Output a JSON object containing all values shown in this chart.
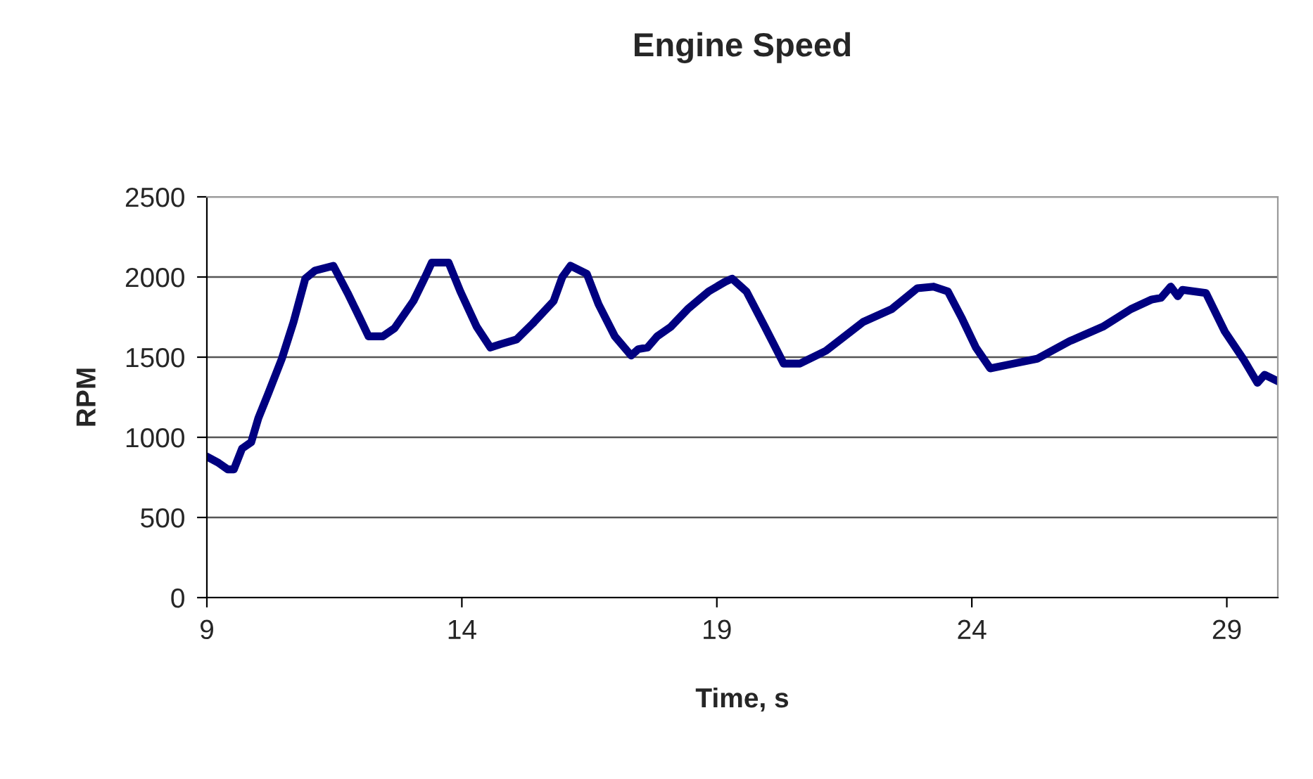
{
  "chart_data": {
    "type": "line",
    "title": "Engine Speed",
    "xlabel": "Time, s",
    "ylabel": "RPM",
    "xlim": [
      9,
      30
    ],
    "xticks": [
      9,
      14,
      19,
      24,
      29
    ],
    "ylim": [
      0,
      2500
    ],
    "yticks": [
      0,
      500,
      1000,
      1500,
      2000,
      2500
    ],
    "grid": "y",
    "marker": "none",
    "line_style": "solid",
    "series": [
      {
        "color": "#000080",
        "x": [
          9.0,
          9.23,
          9.41,
          9.53,
          9.69,
          9.87,
          10.01,
          10.2,
          10.47,
          10.7,
          10.93,
          11.12,
          11.48,
          11.76,
          11.99,
          12.17,
          12.45,
          12.68,
          13.05,
          13.28,
          13.41,
          13.74,
          13.97,
          14.29,
          14.56,
          14.75,
          15.07,
          15.39,
          15.8,
          15.97,
          16.13,
          16.45,
          16.68,
          17.0,
          17.32,
          17.46,
          17.64,
          17.83,
          18.1,
          18.43,
          18.84,
          19.16,
          19.3,
          19.58,
          19.94,
          20.31,
          20.63,
          21.14,
          21.87,
          22.43,
          22.93,
          23.25,
          23.53,
          23.81,
          24.08,
          24.36,
          24.82,
          25.28,
          25.92,
          26.57,
          27.12,
          27.53,
          27.71,
          27.9,
          28.04,
          28.13,
          28.59,
          28.96,
          29.32,
          29.6,
          29.74,
          30.0
        ],
        "values": [
          880,
          840,
          800,
          800,
          930,
          970,
          1120,
          1270,
          1490,
          1720,
          1990,
          2040,
          2070,
          1900,
          1750,
          1630,
          1630,
          1680,
          1850,
          2000,
          2090,
          2090,
          1910,
          1690,
          1560,
          1580,
          1610,
          1710,
          1850,
          2000,
          2070,
          2020,
          1830,
          1630,
          1510,
          1550,
          1560,
          1630,
          1690,
          1800,
          1910,
          1970,
          1990,
          1910,
          1690,
          1460,
          1460,
          1540,
          1720,
          1800,
          1930,
          1940,
          1910,
          1740,
          1560,
          1430,
          1460,
          1490,
          1600,
          1690,
          1800,
          1860,
          1870,
          1940,
          1880,
          1920,
          1900,
          1660,
          1490,
          1340,
          1390,
          1350
        ]
      }
    ]
  }
}
